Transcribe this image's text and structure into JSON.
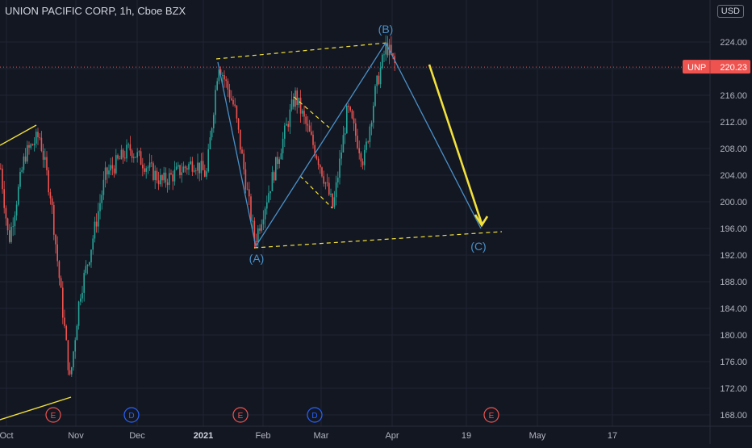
{
  "header": {
    "title": "UNION PACIFIC CORP, 1h, Cboe BZX",
    "currency": "USD"
  },
  "price_tag": {
    "symbol": "UNP",
    "value": "220.23"
  },
  "wave_labels": [
    "(A)",
    "(B)",
    "(C)"
  ],
  "event_markers": [
    "E",
    "D",
    "E",
    "D",
    "E"
  ],
  "colors": {
    "background": "#131722",
    "grid": "#1f2433",
    "up": "#26a69a",
    "down": "#ef5350",
    "wave": "#4a90c8",
    "trend": "#f2e13c",
    "price_tag": "#ef5350",
    "earnings": "#ef5350",
    "dividend": "#2962ff"
  },
  "chart_data": {
    "type": "candlestick",
    "title": "UNION PACIFIC CORP, 1h, Cboe BZX",
    "yaxis": {
      "side": "right",
      "ticks": [
        "224.00",
        "220.00",
        "216.00",
        "212.00",
        "208.00",
        "204.00",
        "200.00",
        "196.00",
        "192.00",
        "188.00",
        "184.00",
        "180.00",
        "176.00",
        "172.00",
        "168.00"
      ],
      "ylim": [
        166,
        228
      ]
    },
    "xaxis": {
      "ticks": [
        "Oct",
        "Nov",
        "Dec",
        "2021",
        "Feb",
        "Mar",
        "Apr",
        "19",
        "May",
        "17"
      ]
    },
    "grid": true,
    "last_price": 220.23,
    "series": [
      {
        "points": [
          [
            "Oct",
            205
          ],
          [
            "Oct",
            194
          ],
          [
            "Oct",
            207
          ],
          [
            "Oct",
            210
          ],
          [
            "Oct",
            201
          ],
          [
            "Nov",
            173
          ],
          [
            "Nov",
            186
          ],
          [
            "Nov",
            192
          ],
          [
            "Nov",
            204
          ],
          [
            "Dec",
            208
          ],
          [
            "Dec",
            203
          ],
          [
            "Dec",
            206
          ],
          [
            "2021",
            204
          ],
          [
            "2021",
            221
          ],
          [
            "2021",
            214
          ],
          [
            "Feb",
            194
          ],
          [
            "Feb",
            205
          ],
          [
            "Feb",
            216
          ],
          [
            "Mar",
            206
          ],
          [
            "Mar",
            199
          ],
          [
            "Mar",
            214
          ],
          [
            "Mar",
            206
          ],
          [
            "Mar",
            217
          ],
          [
            "Apr",
            223.5
          ],
          [
            "Apr",
            220.2
          ]
        ]
      }
    ],
    "annotations": [
      {
        "label": "(A)",
        "price": 193.5
      },
      {
        "label": "(B)",
        "price": 223.8
      },
      {
        "label": "(C)",
        "price": 195.5
      }
    ],
    "projection": {
      "from": "(B)",
      "to": "(C)"
    }
  }
}
